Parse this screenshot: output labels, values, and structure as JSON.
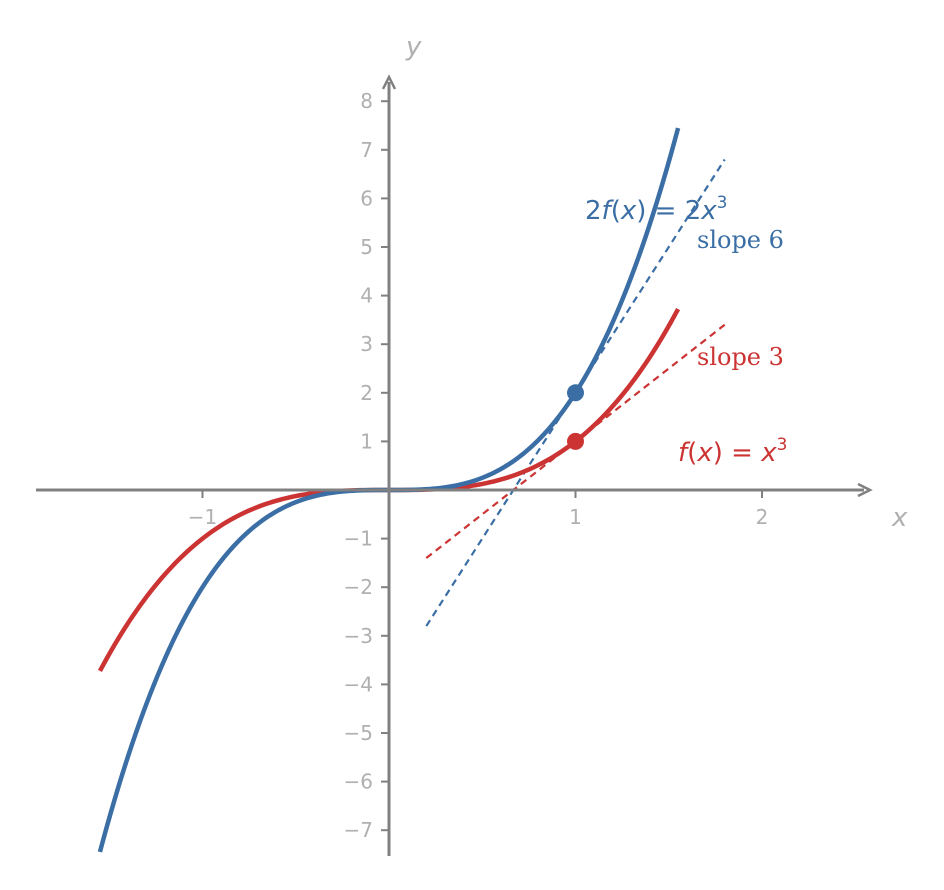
{
  "chart_data": {
    "type": "line",
    "xlabel": "x",
    "ylabel": "y",
    "xlim": [
      -1.9,
      2.6
    ],
    "ylim": [
      -7.5,
      8.4
    ],
    "x_ticks": [
      -1,
      1,
      2
    ],
    "y_ticks": [
      -7,
      -6,
      -5,
      -4,
      -3,
      -2,
      -1,
      1,
      2,
      3,
      4,
      5,
      6,
      7,
      8
    ],
    "grid": false,
    "colors": {
      "axis": "#808080",
      "tick_text": "#b0b0b0",
      "red": "#cc3333",
      "blue": "#3a6ea5"
    },
    "series": [
      {
        "key": "f",
        "name": "f(x) = x³",
        "label": {
          "f": "f",
          "open": "(",
          "x": "x",
          "close": ")",
          "eq": " = ",
          "rhs": "x",
          "exp": "3"
        },
        "coefficient": 1,
        "exponent": 3,
        "x_range": [
          -1.55,
          1.55
        ],
        "color": "#cc3333",
        "point": [
          1,
          1
        ],
        "tangent": {
          "slope": 3,
          "x_range": [
            0.2,
            1.8
          ],
          "label": "slope 3"
        }
      },
      {
        "key": "g",
        "name": "2f(x) = 2x³",
        "label": {
          "c": "2",
          "f": "f",
          "open": "(",
          "x": "x",
          "close": ")",
          "eq": " = ",
          "rhs_c": "2",
          "rhs": "x",
          "exp": "3"
        },
        "coefficient": 2,
        "exponent": 3,
        "x_range": [
          -1.55,
          1.55
        ],
        "color": "#3a6ea5",
        "point": [
          1,
          2
        ],
        "tangent": {
          "slope": 6,
          "x_range": [
            0.2,
            1.8
          ],
          "label": "slope 6"
        }
      }
    ]
  }
}
